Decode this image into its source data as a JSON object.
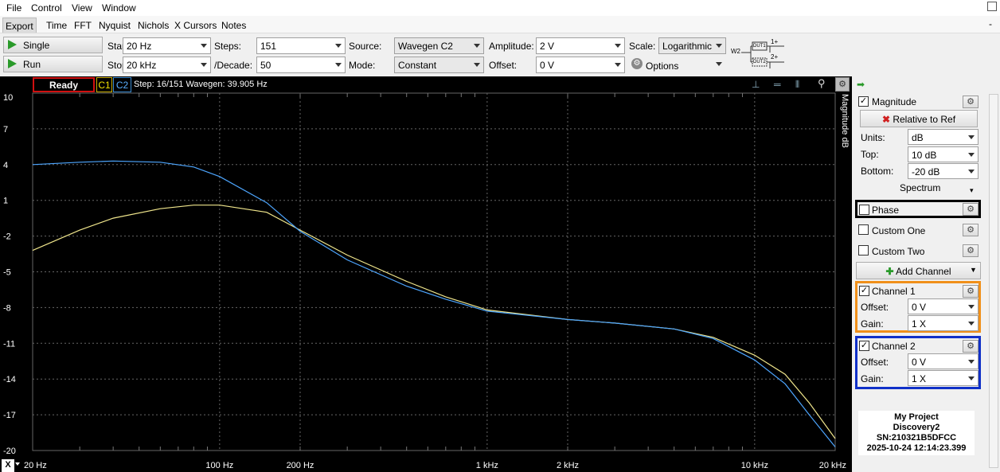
{
  "menu": [
    "File",
    "Control",
    "View",
    "Window"
  ],
  "tabs": [
    "Export",
    "Time",
    "FFT",
    "Nyquist",
    "Nichols",
    "X Cursors",
    "Notes"
  ],
  "toolbar": {
    "single": "Single",
    "run": "Run",
    "start_label": "Start:",
    "start_value": "20 Hz",
    "stop_label": "Stop:",
    "stop_value": "20 kHz",
    "steps_label": "Steps:",
    "steps_value": "151",
    "decade_label": "/Decade:",
    "decade_value": "50",
    "source_label": "Source:",
    "source_value": "Wavegen C2",
    "mode_label": "Mode:",
    "mode_value": "Constant",
    "amplitude_label": "Amplitude:",
    "amplitude_value": "2 V",
    "offset_label": "Offset:",
    "offset_value": "0 V",
    "scale_label": "Scale:",
    "scale_value": "Logarithmic",
    "options_label": "Options",
    "diagram_w2": "W2",
    "diagram_dut1": "DUT1",
    "diagram_dut2": "DUT2",
    "diagram_1": "1+",
    "diagram_2": "2+"
  },
  "status": {
    "state": "Ready",
    "c1": "C1",
    "c2": "C2",
    "text": "Step: 16/151  Wavegen: 39.905 Hz"
  },
  "plot": {
    "axis_title": "Magnitude  dB",
    "x_axis_button": "X",
    "yticks": [
      "10",
      "7",
      "4",
      "1",
      "-2",
      "-5",
      "-8",
      "-11",
      "-14",
      "-17",
      "-20"
    ],
    "xticks": [
      "20 Hz",
      "100 Hz",
      "200 Hz",
      "1 kHz",
      "2 kHz",
      "10 kHz",
      "20 kHz"
    ]
  },
  "chart_data": {
    "type": "line",
    "xscale": "log",
    "xlim": [
      20,
      20000
    ],
    "ylim": [
      -20,
      10
    ],
    "ylabel": "Magnitude  dB",
    "grid": true,
    "series": [
      {
        "name": "C1",
        "color": "#f0e68c",
        "x": [
          20,
          30,
          40,
          60,
          80,
          100,
          150,
          200,
          300,
          500,
          700,
          1000,
          2000,
          3000,
          5000,
          7000,
          10000,
          13000,
          16000,
          20000
        ],
        "y": [
          -3.2,
          -1.5,
          -0.5,
          0.3,
          0.6,
          0.6,
          0.0,
          -1.5,
          -3.6,
          -5.8,
          -7.1,
          -8.2,
          -9.0,
          -9.3,
          -9.8,
          -10.5,
          -12.0,
          -13.6,
          -16.0,
          -19.0
        ]
      },
      {
        "name": "C2",
        "color": "#4da6ff",
        "x": [
          20,
          30,
          40,
          60,
          80,
          100,
          150,
          200,
          300,
          500,
          700,
          1000,
          2000,
          3000,
          5000,
          7000,
          10000,
          13000,
          16000,
          20000
        ],
        "y": [
          4.0,
          4.2,
          4.3,
          4.2,
          3.8,
          3.0,
          0.8,
          -1.6,
          -4.0,
          -6.2,
          -7.3,
          -8.3,
          -9.0,
          -9.3,
          -9.8,
          -10.6,
          -12.4,
          -14.4,
          -17.0,
          -19.7
        ]
      }
    ]
  },
  "panel": {
    "magnitude": "Magnitude",
    "relative": "Relative to Ref",
    "units_label": "Units:",
    "units_value": "dB",
    "top_label": "Top:",
    "top_value": "10 dB",
    "bottom_label": "Bottom:",
    "bottom_value": "-20 dB",
    "spectrum": "Spectrum",
    "phase": "Phase",
    "custom_one": "Custom One",
    "custom_two": "Custom Two",
    "add_channel": "Add Channel",
    "ch1": "Channel 1",
    "ch2": "Channel 2",
    "offset_label": "Offset:",
    "gain_label": "Gain:",
    "ch1_offset": "0 V",
    "ch1_gain": "1 X",
    "ch2_offset": "0 V",
    "ch2_gain": "1 X",
    "ch1_color": "#f0901a",
    "ch2_color": "#1030c8"
  },
  "device": {
    "project": "My Project",
    "name": "Discovery2",
    "sn": "SN:210321B5DFCC",
    "time": "2025-10-24 12:14:23.399"
  }
}
